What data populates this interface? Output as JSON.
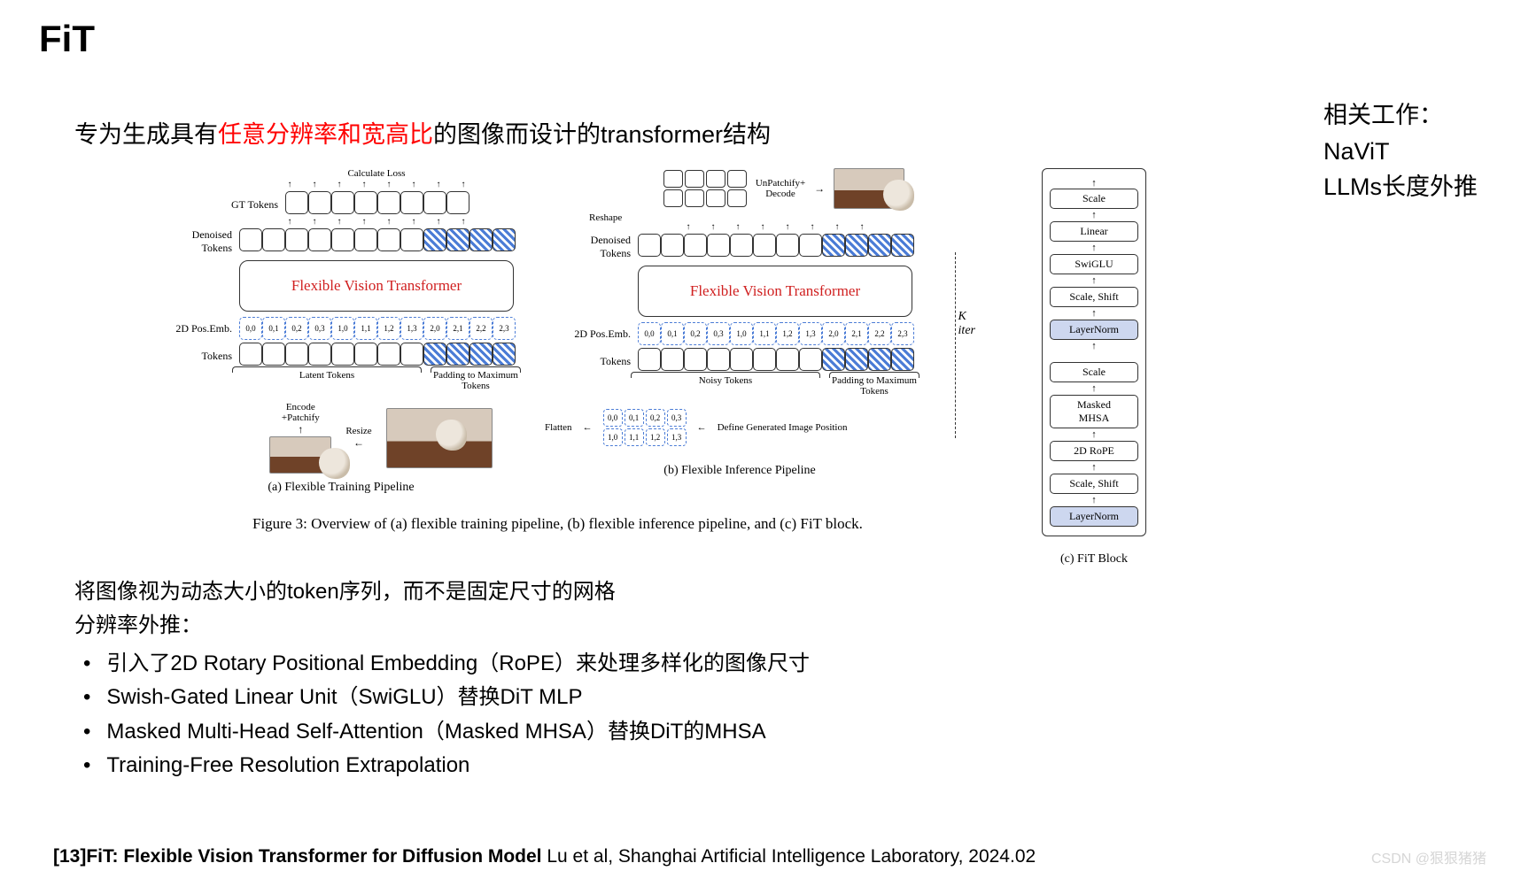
{
  "slide_title": "FiT",
  "subtitle": {
    "pre": "专为生成具有",
    "highlight": "任意分辨率和宽高比",
    "post": "的图像而设计的transformer结构"
  },
  "related_work": {
    "heading": "相关工作：",
    "items": [
      "NaViT",
      "LLMs长度外推"
    ]
  },
  "figure": {
    "caption": "Figure 3: Overview of (a) flexible training pipeline, (b) flexible inference pipeline, and (c) FiT block.",
    "fvt_label": "Flexible Vision Transformer",
    "panel_a": {
      "caption": "(a) Flexible Training Pipeline",
      "top_label": "Calculate Loss",
      "rows": {
        "gt": "GT Tokens",
        "denoised": "Denoised Tokens",
        "pos": "2D Pos.Emb.",
        "tokens": "Tokens"
      },
      "pos_emb": [
        "0,0",
        "0,1",
        "0,2",
        "0,3",
        "1,0",
        "1,1",
        "1,2",
        "1,3",
        "2,0",
        "2,1",
        "2,2",
        "2,3"
      ],
      "brace_left": "Latent Tokens",
      "brace_right": "Padding to Maximum Tokens",
      "encode_label": "Encode\n+Patchify",
      "resize_label": "Resize",
      "solid_count": 8,
      "hatch_count": 4,
      "token_colors": {
        "solid_border": "#333333",
        "hatch_fg": "#4b7cd6",
        "hatch_bg": "#ffffff"
      }
    },
    "panel_b": {
      "caption": "(b) Flexible Inference Pipeline",
      "unpatchify_label": "UnPatchify+\nDecode",
      "reshape_label": "Reshape",
      "denoised_label": "Denoised Tokens",
      "pos_label": "2D Pos.Emb.",
      "tokens_label": "Tokens",
      "flatten_label": "Flatten",
      "define_label": "Define Generated Image Position",
      "noisy_label": "Noisy Tokens",
      "padding_label": "Padding to Maximum Tokens",
      "k_iter_label": "K\niter",
      "pos_emb": [
        "0,0",
        "0,1",
        "0,2",
        "0,3",
        "1,0",
        "1,1",
        "1,2",
        "1,3",
        "2,0",
        "2,1",
        "2,2",
        "2,3"
      ],
      "flatten_grid": [
        [
          "0,0",
          "0,1",
          "0,2",
          "0,3"
        ],
        [
          "1,0",
          "1,1",
          "1,2",
          "1,3"
        ]
      ],
      "reshape_cols": 4,
      "reshape_rows": 2,
      "solid_count": 8,
      "hatch_count": 4
    },
    "panel_c": {
      "caption": "(c) FiT Block",
      "blocks_top_to_bottom": [
        "Scale",
        "Linear",
        "SwiGLU",
        "Scale, Shift",
        "LayerNorm",
        "Scale",
        "Masked\nMHSA",
        "2D RoPE",
        "Scale, Shift",
        "LayerNorm"
      ],
      "ln_bg": "#cdd7ef",
      "box_bg": "#ffffff",
      "border": "#333333"
    }
  },
  "body": {
    "line1": "将图像视为动态大小的token序列，而不是固定尺寸的网格",
    "line2": "分辨率外推：",
    "bullets": [
      "引入了2D Rotary Positional Embedding（RoPE）来处理多样化的图像尺寸",
      "Swish-Gated Linear Unit（SwiGLU）替换DiT MLP",
      "Masked Multi-Head Self-Attention（Masked MHSA）替换DiT的MHSA",
      "Training-Free Resolution Extrapolation"
    ]
  },
  "citation": {
    "bold": "[13]FiT: Flexible Vision Transformer for Diffusion Model",
    "rest": " Lu et al, Shanghai Artificial Intelligence Laboratory, 2024.02"
  },
  "watermark": "CSDN @狠狠猪猪",
  "colors": {
    "highlight_red": "#ff0000",
    "fvt_text": "#d02020",
    "hatch": "#4b7cd6",
    "watermark": "#d6d6d6",
    "background": "#ffffff"
  }
}
